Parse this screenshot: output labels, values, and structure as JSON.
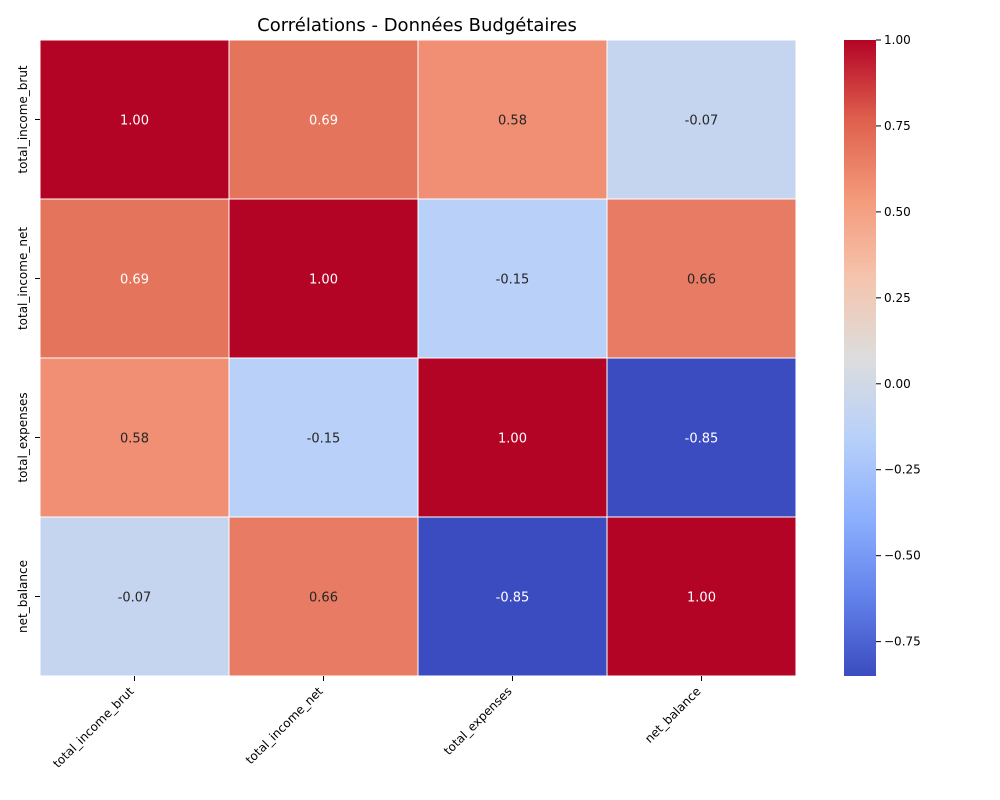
{
  "chart_data": {
    "type": "heatmap",
    "title": "Corrélations - Données Budgétaires",
    "x_categories": [
      "total_income_brut",
      "total_income_net",
      "total_expenses",
      "net_balance"
    ],
    "y_categories": [
      "total_income_brut",
      "total_income_net",
      "total_expenses",
      "net_balance"
    ],
    "values": [
      [
        1.0,
        0.69,
        0.58,
        -0.07
      ],
      [
        0.69,
        1.0,
        -0.15,
        0.66
      ],
      [
        0.58,
        -0.15,
        1.0,
        -0.85
      ],
      [
        -0.07,
        0.66,
        -0.85,
        1.0
      ]
    ],
    "value_format": "0.00",
    "colormap": "coolwarm",
    "color_range": [
      -0.85,
      1.0
    ],
    "colorbar_ticks": [
      "1.00",
      "0.75",
      "0.50",
      "0.25",
      "0.00",
      "−0.25",
      "−0.50",
      "−0.75"
    ],
    "colorbar_tick_values": [
      1.0,
      0.75,
      0.5,
      0.25,
      0.0,
      -0.25,
      -0.5,
      -0.75
    ],
    "x_tick_rotation": "45 degrees",
    "grid": false,
    "legend": "colorbar right"
  }
}
